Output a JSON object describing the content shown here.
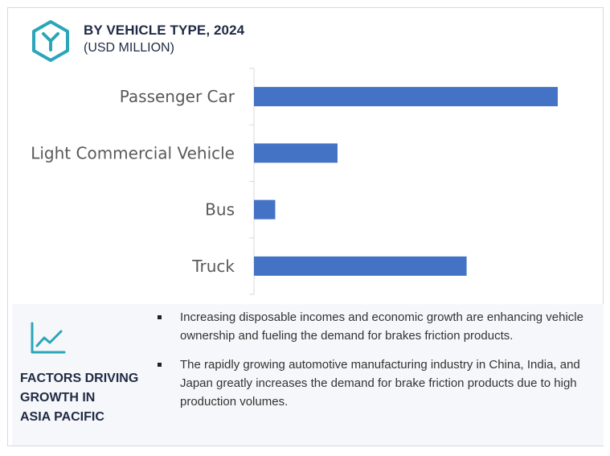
{
  "header": {
    "title": "BY VEHICLE TYPE, 2024",
    "subtitle": "(USD MILLION)"
  },
  "chart_data": {
    "type": "bar",
    "orientation": "horizontal",
    "categories": [
      "Passenger Car",
      "Light Commercial Vehicle",
      "Bus",
      "Truck"
    ],
    "values": [
      100,
      27.5,
      7,
      70
    ],
    "xlim": [
      0,
      100
    ],
    "grid": false,
    "bar_color": "#4472c4"
  },
  "factors": {
    "title_lines": [
      "FACTORS DRIVING",
      "GROWTH IN",
      "ASIA PACIFIC"
    ],
    "bullets": [
      "Increasing disposable incomes and economic growth are enhancing vehicle ownership and fueling the demand for brakes friction products.",
      "The rapidly growing automotive manufacturing industry in China, India, and Japan greatly increases the demand for brake friction products due to high production volumes."
    ]
  },
  "icons": {
    "logo": "hexagon-y-logo-icon",
    "trend": "line-chart-trend-icon"
  },
  "colors": {
    "accent": "#2aa6b8",
    "bar": "#4472c4",
    "title": "#1f2a44"
  }
}
